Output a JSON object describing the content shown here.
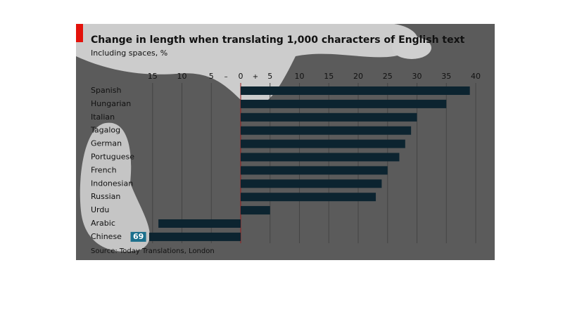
{
  "chart_data": {
    "type": "bar",
    "orientation": "horizontal",
    "title": "Change in length when translating 1,000 characters of English text",
    "subtitle": "Including spaces, %",
    "source": "Source: Today Translations, London",
    "categories": [
      "Spanish",
      "Hungarian",
      "Italian",
      "Tagalog",
      "German",
      "Portuguese",
      "French",
      "Indonesian",
      "Russian",
      "Urdu",
      "Arabic",
      "Chinese"
    ],
    "values": [
      39,
      35,
      30,
      29,
      28,
      27,
      25,
      24,
      23,
      5,
      -14,
      -69
    ],
    "value_labels": [
      null,
      null,
      null,
      null,
      null,
      null,
      null,
      null,
      null,
      null,
      null,
      "69"
    ],
    "color": "#0c2430",
    "xlim": [
      -15.5,
      40
    ],
    "xticks": [
      {
        "value": -15,
        "label": "15"
      },
      {
        "value": -10,
        "label": "10"
      },
      {
        "value": -5,
        "label": "5"
      },
      0,
      5,
      10,
      15,
      20,
      25,
      30,
      35,
      40
    ],
    "annotations": [
      "–",
      "+"
    ],
    "grid": true
  }
}
